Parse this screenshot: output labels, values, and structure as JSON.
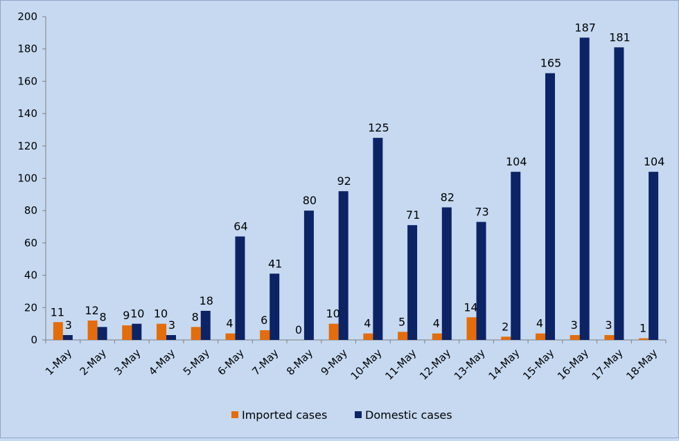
{
  "chart_data": {
    "type": "bar",
    "categories": [
      "1-May",
      "2-May",
      "3-May",
      "4-May",
      "5-May",
      "6-May",
      "7-May",
      "8-May",
      "9-May",
      "10-May",
      "11-May",
      "12-May",
      "13-May",
      "14-May",
      "15-May",
      "16-May",
      "17-May",
      "18-May"
    ],
    "series": [
      {
        "name": "Imported cases",
        "color": "#e46c0a",
        "values": [
          11,
          12,
          9,
          10,
          8,
          4,
          6,
          0,
          10,
          4,
          5,
          4,
          14,
          2,
          4,
          3,
          3,
          1
        ]
      },
      {
        "name": "Domestic cases",
        "color": "#0c2366",
        "values": [
          3,
          8,
          10,
          3,
          18,
          64,
          41,
          80,
          92,
          125,
          71,
          82,
          73,
          104,
          165,
          187,
          181,
          104
        ]
      }
    ],
    "ylim": [
      0,
      200
    ],
    "yticks": [
      0,
      20,
      40,
      60,
      80,
      100,
      120,
      140,
      160,
      180,
      200
    ],
    "xlabel": "",
    "ylabel": "",
    "legend": "bottom",
    "grid": false
  }
}
